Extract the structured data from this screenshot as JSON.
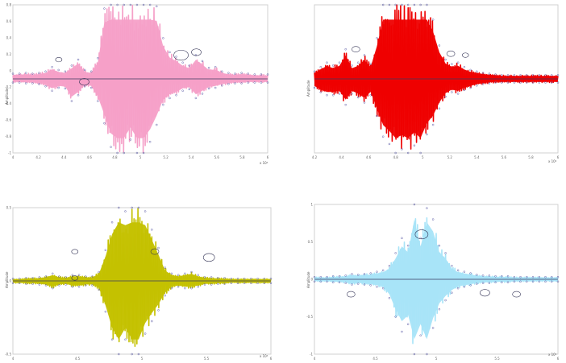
{
  "colors": {
    "axis": "#c0c0c0",
    "frame": "#d0d0d0",
    "baseline": "#3a3a60",
    "marker": "#5f5fa8"
  },
  "chart_data": [
    {
      "type": "area",
      "ylabel": "Amplitude",
      "x_exponent_label": "x 10⁴",
      "color": "#f5a0c8",
      "xticks": [
        "4",
        "4.2",
        "4.4",
        "4.6",
        "4.8",
        "5",
        "5.2",
        "5.4",
        "5.6",
        "5.8",
        "6"
      ],
      "yticks": [
        "0.8",
        "0.6",
        "0.4",
        "0.2",
        "0",
        "-0.2",
        "-0.4",
        "-0.6",
        "-0.8",
        "-1"
      ],
      "ylim": [
        -1,
        1
      ],
      "grid": false,
      "envelope_upper": [
        0.07,
        0.07,
        0.08,
        0.07,
        0.08,
        0.1,
        0.16,
        0.12,
        0.1,
        0.18,
        0.26,
        0.12,
        0.1,
        0.28,
        0.95,
        1.0,
        1.0,
        1.0,
        1.0,
        1.0,
        1.0,
        1.0,
        0.98,
        0.55,
        0.36,
        0.3,
        0.22,
        0.18,
        0.32,
        0.24,
        0.15,
        0.16,
        0.1,
        0.08,
        0.07,
        0.08,
        0.07,
        0.06,
        0.06,
        0.06
      ],
      "envelope_lower": [
        -0.05,
        -0.05,
        -0.06,
        -0.06,
        -0.07,
        -0.1,
        -0.16,
        -0.12,
        -0.13,
        -0.3,
        -0.22,
        -0.1,
        -0.12,
        -0.3,
        -0.6,
        -0.92,
        -1.0,
        -1.0,
        -0.82,
        -1.0,
        -1.0,
        -0.85,
        -0.62,
        -0.35,
        -0.26,
        -0.22,
        -0.16,
        -0.14,
        -0.26,
        -0.2,
        -0.13,
        -0.12,
        -0.09,
        -0.07,
        -0.06,
        -0.06,
        -0.05,
        -0.05,
        -0.05,
        -0.05
      ],
      "baseline": 0
    },
    {
      "type": "area",
      "ylabel": "Amplitude",
      "x_exponent_label": "x 10⁴",
      "color": "#ee0000",
      "xticks": [
        "4.2",
        "4.4",
        "4.6",
        "4.8",
        "5",
        "5.2",
        "5.4",
        "5.6",
        "5.8",
        "6"
      ],
      "yticks": [],
      "ylim": [
        -1,
        1
      ],
      "grid": false,
      "envelope_upper": [
        0.1,
        0.16,
        0.22,
        0.18,
        0.22,
        0.4,
        0.18,
        0.22,
        0.32,
        0.2,
        0.55,
        1.0,
        1.0,
        1.0,
        1.0,
        1.0,
        1.0,
        1.0,
        1.0,
        0.8,
        0.45,
        0.26,
        0.2,
        0.22,
        0.16,
        0.12,
        0.1,
        0.08,
        0.07,
        0.06,
        0.05,
        0.05,
        0.05,
        0.05,
        0.05,
        0.05,
        0.05,
        0.05,
        0.05,
        0.05
      ],
      "envelope_lower": [
        -0.12,
        -0.18,
        -0.22,
        -0.22,
        -0.2,
        -0.35,
        -0.2,
        -0.25,
        -0.32,
        -0.22,
        -0.5,
        -0.78,
        -0.88,
        -1.0,
        -0.95,
        -1.0,
        -0.9,
        -1.0,
        -0.75,
        -0.62,
        -0.4,
        -0.24,
        -0.18,
        -0.2,
        -0.15,
        -0.12,
        -0.09,
        -0.07,
        -0.06,
        -0.05,
        -0.05,
        -0.05,
        -0.05,
        -0.05,
        -0.05,
        -0.05,
        -0.05,
        -0.05,
        -0.05,
        -0.05
      ],
      "baseline": 0
    },
    {
      "type": "area",
      "ylabel": "Amplitude",
      "x_exponent_label": "x 10⁴",
      "color": "#c4c100",
      "xticks": [
        "4",
        "4.5",
        "5",
        "5.5",
        "6"
      ],
      "yticks": [
        "0.5",
        "0",
        "-0.5"
      ],
      "ylim": [
        -1,
        1
      ],
      "grid": false,
      "envelope_upper": [
        0.03,
        0.03,
        0.04,
        0.04,
        0.05,
        0.06,
        0.1,
        0.06,
        0.05,
        0.08,
        0.08,
        0.06,
        0.06,
        0.12,
        0.42,
        0.8,
        1.0,
        0.95,
        1.0,
        1.0,
        0.95,
        0.7,
        0.45,
        0.18,
        0.1,
        0.08,
        0.1,
        0.12,
        0.08,
        0.05,
        0.05,
        0.04,
        0.04,
        0.03,
        0.03,
        0.03,
        0.03,
        0.03,
        0.03,
        0.03
      ],
      "envelope_lower": [
        -0.03,
        -0.03,
        -0.04,
        -0.04,
        -0.05,
        -0.06,
        -0.1,
        -0.06,
        -0.05,
        -0.08,
        -0.08,
        -0.06,
        -0.06,
        -0.12,
        -0.42,
        -0.8,
        -1.0,
        -0.8,
        -1.0,
        -1.0,
        -0.72,
        -0.55,
        -0.4,
        -0.2,
        -0.1,
        -0.08,
        -0.1,
        -0.1,
        -0.08,
        -0.05,
        -0.05,
        -0.04,
        -0.04,
        -0.03,
        -0.03,
        -0.03,
        -0.03,
        -0.03,
        -0.03,
        -0.03
      ],
      "baseline": 0
    },
    {
      "type": "area",
      "ylabel": "Amplitude",
      "x_exponent_label": "x 10⁴",
      "color": "#a8e4f8",
      "xticks": [
        "4",
        "4.5",
        "5",
        "5.5",
        "6"
      ],
      "yticks": [
        "1",
        "0.5",
        "0",
        "-0.5",
        "-1"
      ],
      "ylim": [
        -1,
        1
      ],
      "grid": false,
      "envelope_upper": [
        0.03,
        0.03,
        0.03,
        0.04,
        0.04,
        0.05,
        0.07,
        0.06,
        0.07,
        0.08,
        0.1,
        0.12,
        0.18,
        0.35,
        0.55,
        0.45,
        1.0,
        0.55,
        0.95,
        0.8,
        0.45,
        0.35,
        0.18,
        0.12,
        0.1,
        0.08,
        0.06,
        0.05,
        0.05,
        0.04,
        0.04,
        0.04,
        0.03,
        0.03,
        0.03,
        0.03,
        0.03,
        0.03,
        0.03,
        0.03
      ],
      "envelope_lower": [
        -0.03,
        -0.03,
        -0.03,
        -0.04,
        -0.04,
        -0.05,
        -0.07,
        -0.06,
        -0.07,
        -0.08,
        -0.1,
        -0.12,
        -0.25,
        -0.5,
        -0.7,
        -0.6,
        -1.0,
        -0.75,
        -1.0,
        -0.65,
        -0.4,
        -0.28,
        -0.18,
        -0.12,
        -0.1,
        -0.08,
        -0.06,
        -0.05,
        -0.05,
        -0.04,
        -0.04,
        -0.04,
        -0.03,
        -0.03,
        -0.03,
        -0.03,
        -0.03,
        -0.03,
        -0.03,
        -0.03
      ],
      "baseline": 0
    }
  ]
}
